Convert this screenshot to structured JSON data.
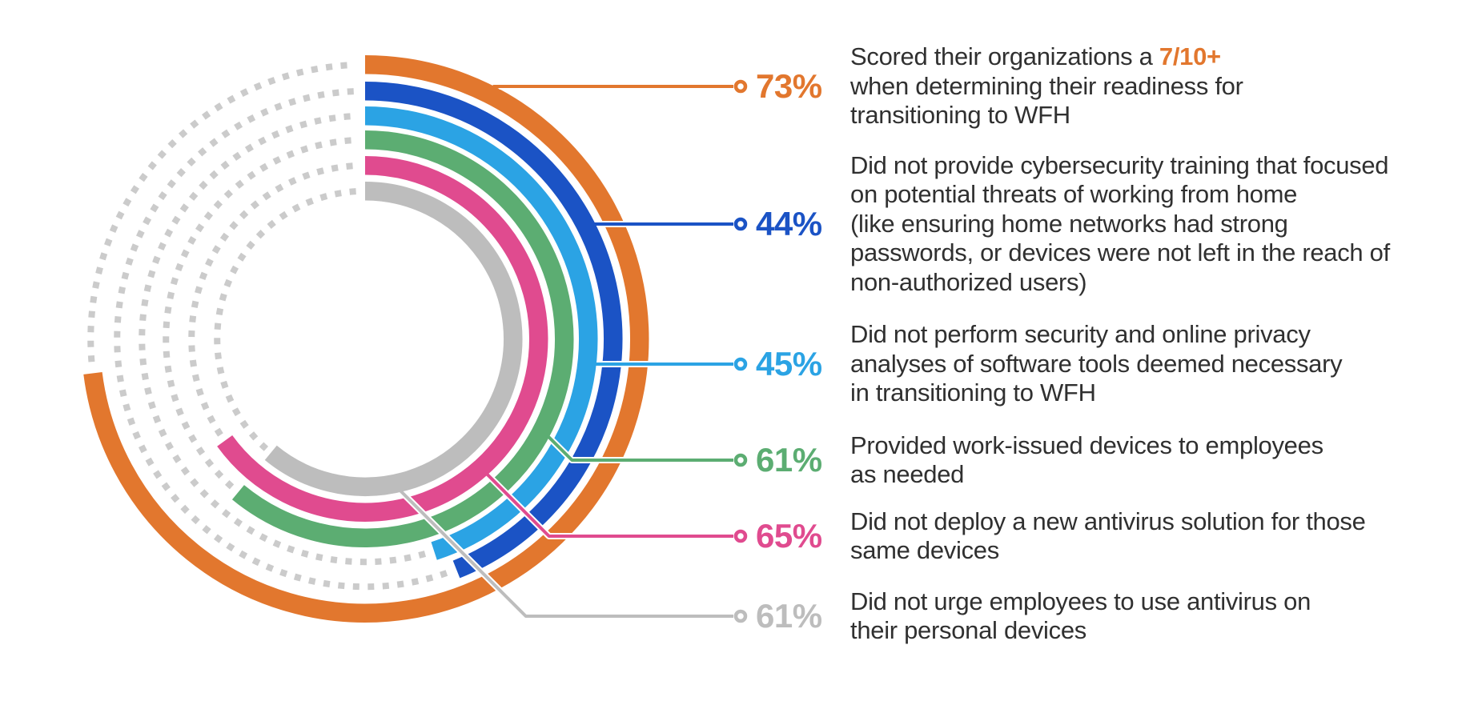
{
  "figure": {
    "background": "#FFFFFF",
    "text_color": "#303030",
    "track_color": "#CBCBCB",
    "items": [
      {
        "id": "readiness-score",
        "label": "73%",
        "percent": 73,
        "color": "#E2772E",
        "lead_pre": "Scored their organizations a ",
        "lead_accent": "7/10+",
        "lines": [
          "when determining their readiness for",
          "transitioning to WFH"
        ]
      },
      {
        "id": "no-cybersecurity-training",
        "label": "44%",
        "percent": 44,
        "color": "#1B53C5",
        "lines": [
          "Did not provide cybersecurity training that focused",
          "on potential threats of working from home",
          "(like ensuring home networks had strong",
          "passwords, or devices were not left in the reach of",
          "non-authorized users)"
        ]
      },
      {
        "id": "no-privacy-analyses",
        "label": "45%",
        "percent": 45,
        "color": "#2BA3E4",
        "lines": [
          "Did not perform security and online privacy",
          "analyses of software tools deemed necessary",
          "in transitioning to WFH"
        ]
      },
      {
        "id": "work-issued-devices",
        "label": "61%",
        "percent": 61,
        "color": "#5CAD72",
        "lines": [
          "Provided work-issued devices to employees",
          "as needed"
        ]
      },
      {
        "id": "no-new-antivirus",
        "label": "65%",
        "percent": 65,
        "color": "#E04B8F",
        "lines": [
          "Did not deploy a new antivirus solution for those",
          "same devices"
        ]
      },
      {
        "id": "no-personal-antivirus-urging",
        "label": "61%",
        "percent": 61,
        "color": "#BDBDBD",
        "lines": [
          "Did not urge employees to use antivirus on",
          "their personal devices"
        ]
      }
    ]
  },
  "chart_data": {
    "type": "radial_bar",
    "unit": "percent",
    "start_angle_deg": 0,
    "direction": "clockwise",
    "rings_outer_to_inner": true,
    "series": [
      {
        "name": "Scored their organizations a 7/10+ when determining their readiness for transitioning to WFH",
        "value": 73,
        "color": "#E2772E"
      },
      {
        "name": "Did not provide cybersecurity training that focused on potential threats of working from home (like ensuring home networks had strong passwords, or devices were not left in the reach of non-authorized users)",
        "value": 44,
        "color": "#1B53C5"
      },
      {
        "name": "Did not perform security and online privacy analyses of software tools deemed necessary in transitioning to WFH",
        "value": 45,
        "color": "#2BA3E4"
      },
      {
        "name": "Provided work-issued devices to employees as needed",
        "value": 61,
        "color": "#5CAD72"
      },
      {
        "name": "Did not deploy a new antivirus solution for those same devices",
        "value": 65,
        "color": "#E04B8F"
      },
      {
        "name": "Did not urge employees to use antivirus on their personal devices",
        "value": 61,
        "color": "#BDBDBD"
      }
    ],
    "remainder_style": "dotted gray track",
    "legend_position": "right"
  }
}
